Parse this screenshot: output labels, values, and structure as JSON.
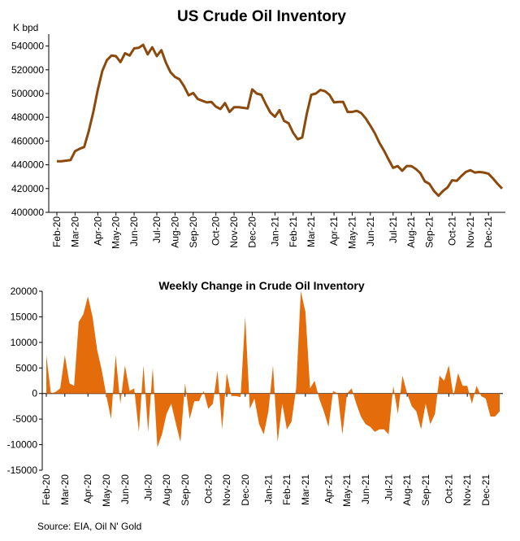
{
  "chart_data": [
    {
      "type": "line",
      "title": "US Crude Oil Inventory",
      "ylabel": "K bpd",
      "color": "#8b4a0c",
      "categories": [
        "Feb-20",
        null,
        null,
        null,
        "Mar-20",
        null,
        null,
        null,
        null,
        "Apr-20",
        null,
        null,
        null,
        "May-20",
        null,
        null,
        null,
        "Jun-20",
        null,
        null,
        null,
        null,
        "Jul-20",
        null,
        null,
        null,
        "Aug-20",
        null,
        null,
        null,
        "Sep-20",
        null,
        null,
        null,
        null,
        "Oct-20",
        null,
        null,
        null,
        "Nov-20",
        null,
        null,
        null,
        "Dec-20",
        null,
        null,
        null,
        null,
        "Jan-21",
        null,
        null,
        null,
        "Feb-21",
        null,
        null,
        null,
        "Mar-21",
        null,
        null,
        null,
        null,
        "Apr-21",
        null,
        null,
        null,
        "May-21",
        null,
        null,
        null,
        "Jun-21",
        null,
        null,
        null,
        null,
        "Jul-21",
        null,
        null,
        null,
        "Aug-21",
        null,
        null,
        null,
        "Sep-21",
        null,
        null,
        null,
        null,
        "Oct-21",
        null,
        null,
        null,
        "Nov-21",
        null,
        null,
        null,
        "Dec-21",
        null,
        null,
        null
      ],
      "values": [
        443000,
        443000,
        443500,
        444000,
        451500,
        453500,
        455000,
        468000,
        484000,
        503000,
        519000,
        528000,
        532000,
        531500,
        526500,
        534000,
        532000,
        538000,
        538500,
        541000,
        533000,
        539000,
        531500,
        536500,
        526000,
        518000,
        514000,
        512000,
        506000,
        498500,
        500500,
        495500,
        494000,
        492500,
        493000,
        489000,
        487000,
        492000,
        484500,
        488500,
        488500,
        488000,
        487500,
        503500,
        500000,
        499000,
        491000,
        484000,
        480500,
        486000,
        477000,
        475000,
        467000,
        461500,
        463000,
        483000,
        499000,
        500000,
        503000,
        502000,
        499000,
        492500,
        493000,
        493000,
        484500,
        484500,
        485500,
        483500,
        479000,
        473000,
        466500,
        458500,
        452000,
        444500,
        437500,
        439000,
        435000,
        439000,
        439000,
        436500,
        433000,
        426000,
        424000,
        418000,
        414000,
        418000,
        421000,
        427000,
        426500,
        430500,
        434000,
        435500,
        433500,
        434000,
        433500,
        432500,
        428500,
        424000,
        420000
      ],
      "ylim": [
        400000,
        550000
      ],
      "yticks": [
        400000,
        420000,
        440000,
        460000,
        480000,
        500000,
        520000,
        540000
      ]
    },
    {
      "type": "area",
      "title": "Weekly Change in Crude Oil Inventory",
      "color": "#e46c0a",
      "categories": [
        "Feb-20",
        null,
        null,
        null,
        "Mar-20",
        null,
        null,
        null,
        null,
        "Apr-20",
        null,
        null,
        null,
        "May-20",
        null,
        null,
        null,
        "Jun-20",
        null,
        null,
        null,
        null,
        "Jul-20",
        null,
        null,
        null,
        "Aug-20",
        null,
        null,
        null,
        "Sep-20",
        null,
        null,
        null,
        null,
        "Oct-20",
        null,
        null,
        null,
        "Nov-20",
        null,
        null,
        null,
        "Dec-20",
        null,
        null,
        null,
        null,
        "Jan-21",
        null,
        null,
        null,
        "Feb-21",
        null,
        null,
        null,
        "Mar-21",
        null,
        null,
        null,
        null,
        "Apr-21",
        null,
        null,
        null,
        "May-21",
        null,
        null,
        null,
        "Jun-21",
        null,
        null,
        null,
        null,
        "Jul-21",
        null,
        null,
        null,
        "Aug-21",
        null,
        null,
        null,
        "Sep-21",
        null,
        null,
        null,
        null,
        "Oct-21",
        null,
        null,
        null,
        "Nov-21",
        null,
        null,
        null,
        "Dec-21",
        null,
        null,
        null
      ],
      "values": [
        7500,
        0,
        300,
        1000,
        7500,
        2000,
        1500,
        14000,
        15500,
        19000,
        15000,
        8500,
        4500,
        -500,
        -5000,
        7500,
        -2000,
        5500,
        500,
        1000,
        -7500,
        5500,
        -7500,
        5000,
        -10500,
        -8000,
        -4000,
        -2000,
        -5800,
        -9500,
        2000,
        -5000,
        -1500,
        -1500,
        500,
        -3000,
        -2000,
        4500,
        -7000,
        4000,
        -500,
        -500,
        -700,
        15000,
        -3000,
        -1000,
        -6000,
        -8000,
        -3500,
        5500,
        -9500,
        -2000,
        -7000,
        -5500,
        1000,
        20000,
        16000,
        1000,
        2500,
        -1000,
        -3500,
        -6500,
        500,
        0,
        -8000,
        0,
        1000,
        -2000,
        -4500,
        -6000,
        -6500,
        -7500,
        -7000,
        -7000,
        -8000,
        1500,
        -4000,
        3500,
        0,
        -2500,
        -3500,
        -7000,
        -2000,
        -6000,
        -4000,
        3500,
        2500,
        5500,
        -500,
        4000,
        1500,
        1500,
        -2000,
        1500,
        -500,
        -1000,
        -4500,
        -4500,
        -3500
      ],
      "ylim": [
        -15000,
        20000
      ],
      "yticks": [
        -15000,
        -10000,
        -5000,
        0,
        5000,
        10000,
        15000,
        20000
      ]
    }
  ],
  "source": "Source: EIA, Oil N' Gold"
}
